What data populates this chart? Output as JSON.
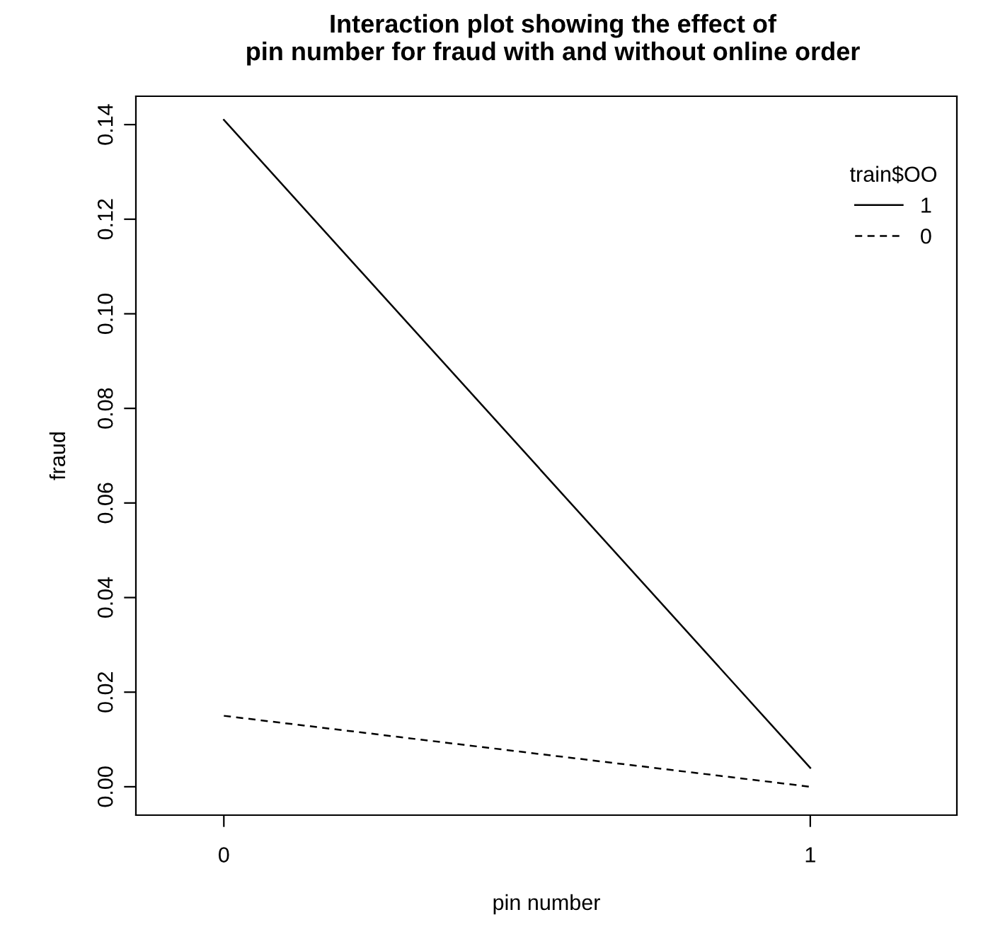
{
  "chart_data": {
    "type": "line",
    "title": "Interaction plot showing the effect of\npin number for fraud with and without online order",
    "xlabel": "pin number",
    "ylabel": "fraud",
    "x": [
      0,
      1
    ],
    "xlim": [
      -0.15,
      1.25
    ],
    "xticks": [
      0,
      1
    ],
    "series": [
      {
        "name": "1",
        "color": "#000000",
        "line_style": "solid",
        "values": [
          0.141,
          0.004
        ]
      },
      {
        "name": "0",
        "color": "#000000",
        "line_style": "dashed",
        "values": [
          0.015,
          0.0
        ]
      }
    ],
    "legend_title": "train$OO",
    "legend": "top right",
    "grid": false,
    "marker": "none",
    "ylim": [
      -0.006,
      0.146
    ],
    "yticks": [
      {
        "value": 0,
        "label": "0.00"
      },
      {
        "value": 0.02,
        "label": "0.02"
      },
      {
        "value": 0.04,
        "label": "0.04"
      },
      {
        "value": 0.06,
        "label": "0.06"
      },
      {
        "value": 0.08,
        "label": "0.08"
      },
      {
        "value": 0.1,
        "label": "0.10"
      },
      {
        "value": 0.12,
        "label": "0.12"
      },
      {
        "value": 0.14,
        "label": "0.14"
      }
    ]
  }
}
